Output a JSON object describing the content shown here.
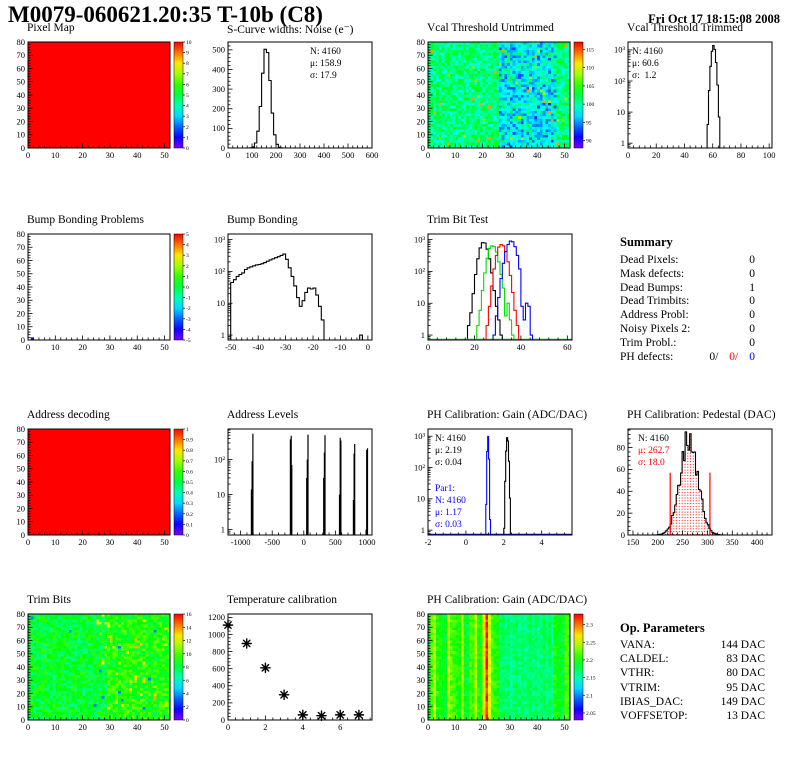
{
  "header": {
    "title": "M0079-060621.20:35 T-10b (C8)",
    "timestamp": "Fri Oct 17 18:15:08 2008"
  },
  "colors": {
    "black": "#000000",
    "red": "#ff0000",
    "green": "#00dd00",
    "blue": "#0000ff"
  },
  "chart_data": [
    {
      "id": "pixel-map",
      "type": "heatmap",
      "title": "Pixel Map",
      "map": "uniform",
      "value": 10,
      "x": {
        "min": 0,
        "max": 52,
        "ticks": [
          0,
          10,
          20,
          30,
          40,
          50
        ]
      },
      "y": {
        "min": 0,
        "max": 80,
        "ticks": [
          0,
          10,
          20,
          30,
          40,
          50,
          60,
          70,
          80
        ]
      },
      "colorbar": {
        "min": 0,
        "max": 10,
        "ticks": [
          0,
          1,
          2,
          3,
          4,
          5,
          6,
          7,
          8,
          9,
          10
        ]
      }
    },
    {
      "id": "scurve-noise",
      "type": "hist",
      "title": "S-Curve widths: Noise (e⁻)",
      "x": {
        "min": 0,
        "max": 600,
        "ticks": [
          0,
          100,
          200,
          300,
          400,
          500,
          600
        ]
      },
      "y": {
        "min": 0,
        "max": 540,
        "ticks": [
          0,
          100,
          200,
          300,
          400,
          500
        ]
      },
      "series": [
        {
          "color": "black",
          "model": {
            "from": 0,
            "to": 600,
            "binw": 10,
            "mu": 158.9,
            "sigma": 17.9,
            "peak": 515
          }
        }
      ],
      "stats_blocks": [
        {
          "x": 110,
          "y": 24,
          "lines": [
            {
              "t": "N: 4160",
              "c": "black"
            },
            {
              "t": "μ: 158.9",
              "c": "black"
            },
            {
              "t": "σ: 17.9",
              "c": "black"
            }
          ]
        }
      ]
    },
    {
      "id": "vcal-untrimmed",
      "type": "heatmap",
      "title": "Vcal Threshold Untrimmed",
      "map": "vcal",
      "seed": 7,
      "x": {
        "min": 0,
        "max": 52,
        "ticks": [
          0,
          10,
          20,
          30,
          40,
          50
        ]
      },
      "y": {
        "min": 0,
        "max": 80,
        "ticks": [
          0,
          10,
          20,
          30,
          40,
          50,
          60,
          70,
          80
        ]
      },
      "colorbar": {
        "min": 88,
        "max": 117,
        "ticks": [
          90,
          95,
          100,
          105,
          110,
          115
        ]
      }
    },
    {
      "id": "vcal-trimmed",
      "type": "hist",
      "title": "Vcal Threshold Trimmed",
      "x": {
        "min": 0,
        "max": 102,
        "ticks": [
          0,
          20,
          40,
          60,
          80,
          100
        ]
      },
      "y": {
        "min": 0.7,
        "max": 1800,
        "log": true
      },
      "series": [
        {
          "color": "black",
          "model": {
            "from": 0,
            "to": 102,
            "binw": 1,
            "mu": 60.6,
            "sigma": 1.2,
            "peak": 1380
          }
        }
      ],
      "stats_blocks": [
        {
          "x": 32,
          "y": 24,
          "lines": [
            {
              "t": "N: 4160",
              "c": "black"
            },
            {
              "t": "μ: 60.6",
              "c": "black"
            },
            {
              "t": "σ:  1.2",
              "c": "black"
            }
          ]
        }
      ]
    },
    {
      "id": "bump-problems",
      "type": "heatmap",
      "title": "Bump Bonding Problems",
      "map": "white",
      "defects": [
        {
          "col": 1,
          "value": -4
        }
      ],
      "x": {
        "min": 0,
        "max": 52,
        "ticks": [
          0,
          10,
          20,
          30,
          40,
          50
        ]
      },
      "y": {
        "min": 0,
        "max": 80,
        "ticks": [
          0,
          10,
          20,
          30,
          40,
          50,
          60,
          70,
          80
        ]
      },
      "colorbar": {
        "min": -5,
        "max": 5,
        "ticks": [
          -5,
          -4,
          -3,
          -2,
          -1,
          0,
          1,
          2,
          3,
          4,
          5
        ]
      }
    },
    {
      "id": "bump-bonding",
      "type": "hist",
      "title": "Bump Bonding",
      "x": {
        "min": -51,
        "max": 1.5,
        "ticks": [
          -50,
          -40,
          -30,
          -20,
          -10,
          0
        ]
      },
      "y": {
        "min": 0.7,
        "max": 1500,
        "log": true
      },
      "series": [
        {
          "color": "black",
          "start": -50,
          "binw": 1,
          "values": [
            45,
            55,
            70,
            80,
            90,
            115,
            130,
            140,
            150,
            160,
            165,
            175,
            190,
            210,
            230,
            250,
            270,
            290,
            320,
            350,
            240,
            130,
            70,
            35,
            15,
            8,
            12,
            22,
            30,
            28,
            30,
            18,
            8,
            3,
            0,
            0,
            0,
            0,
            0,
            0,
            0,
            0,
            0,
            0,
            0,
            0,
            0,
            1,
            0,
            0
          ]
        }
      ]
    },
    {
      "id": "trim-bit-test",
      "type": "hist",
      "title": "Trim Bit Test",
      "x": {
        "min": 0,
        "max": 62,
        "ticks": [
          0,
          20,
          40,
          60
        ]
      },
      "y": {
        "min": 0.7,
        "max": 1500,
        "log": true
      },
      "series": [
        {
          "color": "black",
          "start": 17,
          "binw": 1,
          "values": [
            2,
            5,
            20,
            80,
            250,
            550,
            800,
            780,
            500,
            250,
            90,
            25,
            8,
            3,
            1
          ]
        },
        {
          "color": "green",
          "start": 21,
          "binw": 1,
          "baseline": true,
          "values": [
            2,
            6,
            25,
            90,
            260,
            520,
            640,
            600,
            410,
            200,
            80,
            30,
            4,
            10,
            3,
            1
          ]
        },
        {
          "color": "red",
          "start": 25,
          "binw": 1,
          "values": [
            2,
            8,
            35,
            120,
            320,
            580,
            700,
            640,
            420,
            200,
            75,
            22,
            6,
            2
          ]
        },
        {
          "color": "blue",
          "start": 28,
          "binw": 1,
          "values": [
            1,
            4,
            15,
            60,
            180,
            420,
            700,
            900,
            850,
            600,
            320,
            120,
            8,
            3,
            10,
            8,
            1
          ]
        }
      ]
    },
    {
      "id": "summary",
      "type": "table",
      "title": "Summary",
      "rows": [
        {
          "label": "Dead Pixels:",
          "value": "0"
        },
        {
          "label": "Mask defects:",
          "value": "0"
        },
        {
          "label": "Dead Bumps:",
          "value": "1"
        },
        {
          "label": "Dead Trimbits:",
          "value": "0"
        },
        {
          "label": "Address Probl:",
          "value": "0"
        },
        {
          "label": "Noisy Pixels 2:",
          "value": "0"
        },
        {
          "label": "Trim Probl.:",
          "value": "0"
        }
      ],
      "ph_row": {
        "label": "PH defects:",
        "parts": [
          {
            "text": "0/",
            "color": "black"
          },
          {
            "text": "0/",
            "color": "red"
          },
          {
            "text": "0",
            "color": "blue"
          }
        ]
      }
    },
    {
      "id": "address-decoding",
      "type": "heatmap",
      "title": "Address decoding",
      "map": "uniform",
      "value": 1,
      "x": {
        "min": 0,
        "max": 52,
        "ticks": [
          0,
          10,
          20,
          30,
          40,
          50
        ]
      },
      "y": {
        "min": 0,
        "max": 80,
        "ticks": [
          0,
          10,
          20,
          30,
          40,
          50,
          60,
          70,
          80
        ]
      },
      "colorbar": {
        "min": 0,
        "max": 1,
        "ticks": [
          0,
          0.1,
          0.2,
          0.3,
          0.4,
          0.5,
          0.6,
          0.7,
          0.8,
          0.9,
          1
        ]
      }
    },
    {
      "id": "address-levels",
      "type": "spikes",
      "title": "Address Levels",
      "x": {
        "min": -1200,
        "max": 1080,
        "ticks": [
          -1000,
          -500,
          0,
          500,
          1000
        ]
      },
      "y": {
        "min": 0.7,
        "max": 750,
        "log": true
      },
      "bars": [
        [
          -830,
          14
        ],
        [
          -818,
          90
        ],
        [
          -806,
          550
        ],
        [
          -212,
          380
        ],
        [
          -200,
          480
        ],
        [
          -190,
          70
        ],
        [
          46,
          30
        ],
        [
          56,
          100
        ],
        [
          66,
          520
        ],
        [
          316,
          30
        ],
        [
          326,
          160
        ],
        [
          336,
          500
        ],
        [
          566,
          10
        ],
        [
          576,
          420
        ],
        [
          588,
          350
        ],
        [
          786,
          7
        ],
        [
          796,
          150
        ],
        [
          806,
          280
        ],
        [
          986,
          1
        ],
        [
          996,
          190
        ],
        [
          1008,
          210
        ]
      ]
    },
    {
      "id": "ph-gain-hist",
      "type": "hist",
      "title": "PH Calibration: Gain (ADC/DAC)",
      "x": {
        "min": -2,
        "max": 5.6,
        "ticks": [
          -2,
          0,
          2,
          4
        ]
      },
      "y": {
        "min": 0.7,
        "max": 1700,
        "log": true
      },
      "series": [
        {
          "color": "black",
          "model": {
            "from": 1.8,
            "to": 2.8,
            "binw": 0.05,
            "mu": 2.19,
            "sigma": 0.045,
            "peak": 950
          }
        },
        {
          "color": "blue",
          "baseline": true,
          "model": {
            "from": 0.8,
            "to": 1.6,
            "binw": 0.05,
            "mu": 1.17,
            "sigma": 0.03,
            "peak": 1000
          }
        }
      ],
      "stats_blocks": [
        {
          "x": 35,
          "y": 24,
          "lines": [
            {
              "t": "N: 4160",
              "c": "black"
            },
            {
              "t": "μ: 2.19",
              "c": "black"
            },
            {
              "t": "σ: 0.04",
              "c": "black"
            }
          ]
        },
        {
          "x": 35,
          "y": 74,
          "lines": [
            {
              "t": "Par1:",
              "c": "blue"
            },
            {
              "t": "N: 4160",
              "c": "blue"
            },
            {
              "t": "μ: 1.17",
              "c": "blue"
            },
            {
              "t": "σ: 0.03",
              "c": "blue"
            }
          ]
        }
      ]
    },
    {
      "id": "ph-pedestal",
      "type": "hist",
      "title": "PH Calibration: Pedestal (DAC)",
      "x": {
        "min": 140,
        "max": 430,
        "ticks": [
          150,
          200,
          250,
          300,
          350,
          400
        ]
      },
      "y": {
        "min": 0,
        "max": 97,
        "ticks": [
          0,
          20,
          40,
          60,
          80
        ]
      },
      "series": [
        {
          "color": "black",
          "fill": "dots",
          "seed": 17,
          "model": {
            "from": 150,
            "to": 430,
            "binw": 3,
            "mu": 262.7,
            "sigma": 18.0,
            "peak": 88,
            "jitter": 0.3
          }
        }
      ],
      "vlines": [
        {
          "x": 225,
          "h": 57
        },
        {
          "x": 305,
          "h": 57
        }
      ],
      "stats_blocks": [
        {
          "x": 38,
          "y": 24,
          "lines": [
            {
              "t": "N: 4160",
              "c": "black"
            },
            {
              "t": "μ: 262.7",
              "c": "red"
            },
            {
              "t": "σ: 18.0",
              "c": "red"
            }
          ]
        }
      ]
    },
    {
      "id": "trim-bits-map",
      "type": "heatmap",
      "title": "Trim Bits",
      "map": "trimbits",
      "seed": 11,
      "x": {
        "min": 0,
        "max": 52,
        "ticks": [
          0,
          10,
          20,
          30,
          40,
          50
        ]
      },
      "y": {
        "min": 0,
        "max": 80,
        "ticks": [
          0,
          10,
          20,
          30,
          40,
          50,
          60,
          70,
          80
        ]
      },
      "colorbar": {
        "min": 0,
        "max": 16,
        "ticks": [
          0,
          2,
          4,
          6,
          8,
          10,
          12,
          14,
          16
        ]
      }
    },
    {
      "id": "temperature",
      "type": "scatter",
      "title": "Temperature calibration",
      "x": {
        "min": 0,
        "max": 7.7,
        "ticks": [
          0,
          2,
          4,
          6
        ]
      },
      "y": {
        "min": 0,
        "max": 1240,
        "ticks": [
          0,
          200,
          400,
          600,
          800,
          1000,
          1200
        ]
      },
      "points": [
        [
          0,
          1110
        ],
        [
          1,
          895
        ],
        [
          2,
          610
        ],
        [
          3,
          295
        ],
        [
          4,
          60
        ],
        [
          5,
          50
        ],
        [
          6,
          60
        ],
        [
          7,
          60
        ]
      ]
    },
    {
      "id": "ph-gain-map",
      "type": "heatmap",
      "title": "PH Calibration: Gain (ADC/DAC)",
      "map": "gainmap",
      "seed": 13,
      "x": {
        "min": 0,
        "max": 52,
        "ticks": [
          0,
          10,
          20,
          30,
          40,
          50
        ]
      },
      "y": {
        "min": 0,
        "max": 80,
        "ticks": [
          0,
          10,
          20,
          30,
          40,
          50,
          60,
          70,
          80
        ]
      },
      "colorbar": {
        "min": 2.03,
        "max": 2.33,
        "ticks": [
          2.05,
          2.1,
          2.15,
          2.2,
          2.25,
          2.3
        ]
      }
    },
    {
      "id": "op-parameters",
      "type": "table",
      "title": "Op. Parameters",
      "rows": [
        {
          "label": "VANA:",
          "value": "144 DAC"
        },
        {
          "label": "CALDEL:",
          "value": "83 DAC"
        },
        {
          "label": "VTHR:",
          "value": "80 DAC"
        },
        {
          "label": "VTRIM:",
          "value": "95 DAC"
        },
        {
          "label": "IBIAS_DAC:",
          "value": "149 DAC"
        },
        {
          "label": "VOFFSETOP:",
          "value": "13 DAC"
        }
      ]
    }
  ]
}
